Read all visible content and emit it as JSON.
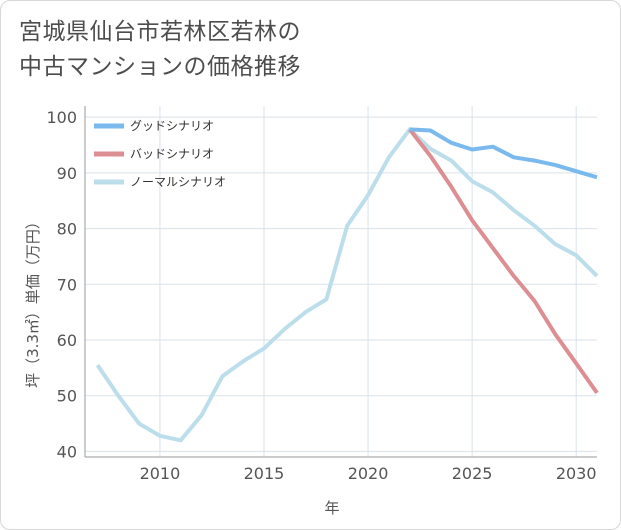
{
  "title_line1": "宮城県仙台市若林区若林の",
  "title_line2": "中古マンションの価格推移",
  "colors": {
    "good": "#7ab9ee",
    "bad": "#dc8e92",
    "normal": "#bcdeeb",
    "grid": "#d9e2ea",
    "axis": "#999999",
    "text": "#555555"
  },
  "chart_data": {
    "type": "line",
    "title": "宮城県仙台市若林区若林の中古マンションの価格推移",
    "xlabel": "年",
    "ylabel": "坪（3.3㎡）単価（万円）",
    "xlim": [
      2006.4,
      2031
    ],
    "ylim": [
      39,
      102
    ],
    "x_ticks": [
      2010,
      2015,
      2020,
      2025,
      2030
    ],
    "y_ticks": [
      40,
      50,
      60,
      70,
      80,
      90,
      100
    ],
    "grid": true,
    "legend_position": "top-left",
    "series": [
      {
        "name": "グッドシナリオ",
        "color": "#7ab9ee",
        "x": [
          2022,
          2023,
          2024,
          2025,
          2026,
          2027,
          2028,
          2029,
          2030,
          2031
        ],
        "values": [
          97.8,
          97.6,
          95.4,
          94.2,
          94.7,
          92.8,
          92.2,
          91.4,
          90.3,
          89.2
        ]
      },
      {
        "name": "バッドシナリオ",
        "color": "#dc8e92",
        "x": [
          2022,
          2023,
          2024,
          2025,
          2026,
          2027,
          2028,
          2029,
          2030,
          2031
        ],
        "values": [
          97.8,
          93.0,
          87.5,
          81.5,
          76.5,
          71.5,
          67.0,
          61.0,
          55.8,
          50.5
        ]
      },
      {
        "name": "ノーマルシナリオ",
        "color": "#bcdeeb",
        "x": [
          2007,
          2008,
          2009,
          2010,
          2011,
          2012,
          2013,
          2014,
          2015,
          2016,
          2017,
          2018,
          2019,
          2020,
          2021,
          2022,
          2023,
          2024,
          2025,
          2026,
          2027,
          2028,
          2029,
          2030,
          2031
        ],
        "values": [
          55.5,
          50.0,
          45.0,
          42.8,
          42.0,
          46.5,
          53.5,
          56.2,
          58.5,
          62.0,
          65.0,
          67.3,
          80.5,
          86.0,
          92.8,
          97.8,
          94.3,
          92.2,
          88.5,
          86.5,
          83.3,
          80.5,
          77.2,
          75.2,
          71.5
        ]
      }
    ]
  }
}
